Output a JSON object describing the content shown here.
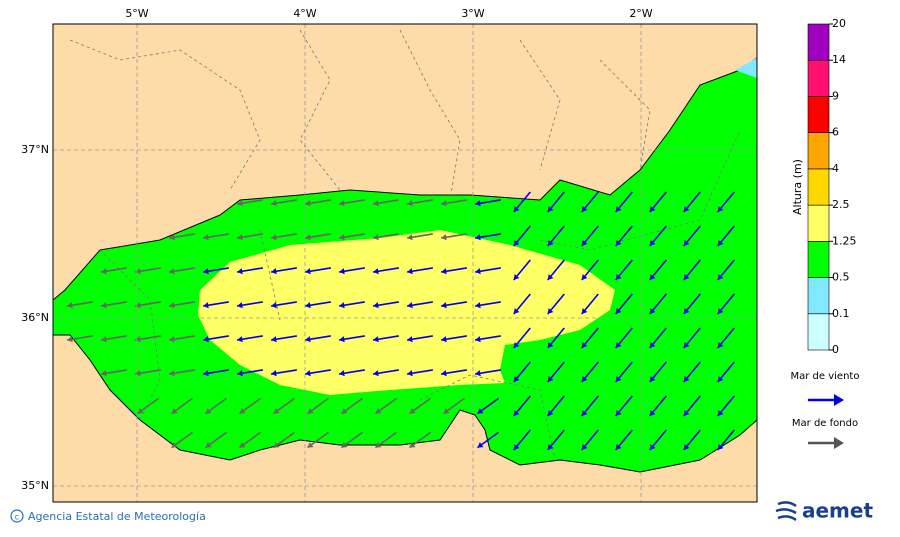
{
  "map": {
    "lon_labels": [
      "5°W",
      "4°W",
      "3°W",
      "2°W"
    ],
    "lat_labels": [
      "37°N",
      "36°N",
      "35°N"
    ]
  },
  "legend": {
    "title": "Altura (m)",
    "levels": [
      0,
      0.1,
      0.5,
      1.25,
      2.5,
      4,
      6,
      9,
      14,
      20
    ],
    "colors": [
      "#ccffff",
      "#80e8ff",
      "#00ff00",
      "#ffff66",
      "#ffd700",
      "#ffa500",
      "#ff0000",
      "#ff1070",
      "#a000c0"
    ],
    "wind_sea": "Mar de viento",
    "swell": "Mar de fondo"
  },
  "footer": {
    "agency": "Agencia Estatal de Meteorología",
    "logo": "aemet"
  }
}
